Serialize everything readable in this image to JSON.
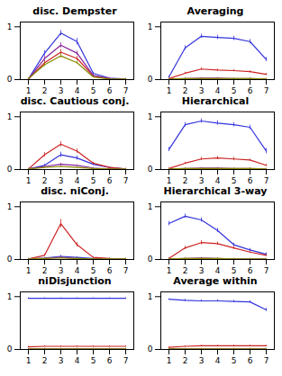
{
  "chart_data": [
    {
      "type": "line",
      "title": "disc. Dempster",
      "x": [
        1,
        2,
        3,
        4,
        5,
        6,
        7
      ],
      "series": [
        {
          "color": "#3333dd",
          "values": [
            0.01,
            0.5,
            0.88,
            0.72,
            0.12,
            0.03,
            0.01
          ],
          "errors": [
            0.01,
            0.05,
            0.05,
            0.06,
            0.02,
            0.01,
            0.01
          ]
        },
        {
          "color": "#cc2222",
          "values": [
            0.01,
            0.32,
            0.52,
            0.4,
            0.07,
            0.02,
            0.01
          ],
          "errors": [
            0.01,
            0.04,
            0.05,
            0.04,
            0.02,
            0.01,
            0.01
          ]
        },
        {
          "color": "#882299",
          "values": [
            0.01,
            0.4,
            0.65,
            0.5,
            0.08,
            0.02,
            0.01
          ],
          "errors": [
            0.01,
            0.04,
            0.05,
            0.04,
            0.02,
            0.01,
            0.01
          ]
        },
        {
          "color": "#888800",
          "values": [
            0.02,
            0.28,
            0.45,
            0.32,
            0.05,
            0.01,
            0.01
          ],
          "errors": [
            0.01,
            0.03,
            0.04,
            0.03,
            0.01,
            0.01,
            0.01
          ]
        }
      ],
      "xlim": [
        0.5,
        7.5
      ],
      "ylim": [
        0,
        1.09
      ],
      "xticks": [
        1,
        2,
        3,
        4,
        5,
        6,
        7
      ],
      "yticks": [
        0,
        1
      ]
    },
    {
      "type": "line",
      "title": "Averaging",
      "x": [
        1,
        2,
        3,
        4,
        5,
        6,
        7
      ],
      "series": [
        {
          "color": "#3333dd",
          "values": [
            0.05,
            0.6,
            0.82,
            0.8,
            0.78,
            0.72,
            0.38
          ],
          "errors": [
            0.02,
            0.04,
            0.04,
            0.04,
            0.04,
            0.04,
            0.04
          ]
        },
        {
          "color": "#cc2222",
          "values": [
            0.02,
            0.12,
            0.2,
            0.18,
            0.17,
            0.15,
            0.1
          ],
          "errors": [
            0.01,
            0.02,
            0.02,
            0.02,
            0.02,
            0.02,
            0.02
          ]
        },
        {
          "color": "#882299",
          "values": [
            0.01,
            0.02,
            0.03,
            0.03,
            0.02,
            0.02,
            0.01
          ],
          "errors": [
            0.01,
            0.01,
            0.01,
            0.01,
            0.01,
            0.01,
            0.01
          ]
        },
        {
          "color": "#888800",
          "values": [
            0.01,
            0.02,
            0.02,
            0.02,
            0.02,
            0.02,
            0.01
          ],
          "errors": [
            0.01,
            0.01,
            0.01,
            0.01,
            0.01,
            0.01,
            0.01
          ]
        }
      ],
      "xlim": [
        0.5,
        7.5
      ],
      "ylim": [
        0,
        1.09
      ],
      "xticks": [
        1,
        2,
        3,
        4,
        5,
        6,
        7
      ],
      "yticks": [
        0,
        1
      ]
    },
    {
      "type": "line",
      "title": "disc. Cautious conj.",
      "x": [
        1,
        2,
        3,
        4,
        5,
        6,
        7
      ],
      "series": [
        {
          "color": "#3333dd",
          "values": [
            0.01,
            0.08,
            0.28,
            0.22,
            0.1,
            0.04,
            0.01
          ],
          "errors": [
            0.01,
            0.02,
            0.05,
            0.04,
            0.02,
            0.01,
            0.01
          ]
        },
        {
          "color": "#cc2222",
          "values": [
            0.01,
            0.28,
            0.48,
            0.35,
            0.12,
            0.04,
            0.01
          ],
          "errors": [
            0.01,
            0.04,
            0.05,
            0.04,
            0.02,
            0.01,
            0.01
          ]
        },
        {
          "color": "#882299",
          "values": [
            0.01,
            0.06,
            0.1,
            0.08,
            0.03,
            0.01,
            0.01
          ],
          "errors": [
            0.01,
            0.01,
            0.02,
            0.01,
            0.01,
            0.01,
            0.01
          ]
        },
        {
          "color": "#888800",
          "values": [
            0.01,
            0.04,
            0.06,
            0.04,
            0.02,
            0.01,
            0.01
          ],
          "errors": [
            0.01,
            0.01,
            0.01,
            0.01,
            0.01,
            0.01,
            0.01
          ]
        }
      ],
      "xlim": [
        0.5,
        7.5
      ],
      "ylim": [
        0,
        1.09
      ],
      "xticks": [
        1,
        2,
        3,
        4,
        5,
        6,
        7
      ],
      "yticks": [
        0,
        1
      ]
    },
    {
      "type": "line",
      "title": "Hierarchical",
      "x": [
        1,
        2,
        3,
        4,
        5,
        6,
        7
      ],
      "series": [
        {
          "color": "#3333dd",
          "values": [
            0.38,
            0.85,
            0.92,
            0.88,
            0.85,
            0.8,
            0.35
          ],
          "errors": [
            0.04,
            0.04,
            0.04,
            0.04,
            0.04,
            0.04,
            0.05
          ]
        },
        {
          "color": "#cc2222",
          "values": [
            0.02,
            0.12,
            0.2,
            0.22,
            0.2,
            0.18,
            0.08
          ],
          "errors": [
            0.01,
            0.02,
            0.03,
            0.03,
            0.03,
            0.02,
            0.02
          ]
        },
        {
          "color": "#882299",
          "values": [
            0.01,
            0.02,
            0.03,
            0.03,
            0.02,
            0.02,
            0.01
          ],
          "errors": [
            0.01,
            0.01,
            0.01,
            0.01,
            0.01,
            0.01,
            0.01
          ]
        },
        {
          "color": "#888800",
          "values": [
            0.01,
            0.02,
            0.02,
            0.02,
            0.02,
            0.02,
            0.01
          ],
          "errors": [
            0.01,
            0.01,
            0.01,
            0.01,
            0.01,
            0.01,
            0.01
          ]
        }
      ],
      "xlim": [
        0.5,
        7.5
      ],
      "ylim": [
        0,
        1.09
      ],
      "xticks": [
        1,
        2,
        3,
        4,
        5,
        6,
        7
      ],
      "yticks": [
        0,
        1
      ]
    },
    {
      "type": "line",
      "title": "disc. niConj.",
      "x": [
        1,
        2,
        3,
        4,
        5,
        6,
        7
      ],
      "series": [
        {
          "color": "#3333dd",
          "values": [
            0.01,
            0.03,
            0.06,
            0.04,
            0.02,
            0.01,
            0.01
          ],
          "errors": [
            0.01,
            0.01,
            0.02,
            0.01,
            0.01,
            0.01,
            0.01
          ]
        },
        {
          "color": "#cc2222",
          "values": [
            0.01,
            0.08,
            0.68,
            0.28,
            0.04,
            0.02,
            0.01
          ],
          "errors": [
            0.01,
            0.02,
            0.08,
            0.04,
            0.01,
            0.01,
            0.01
          ]
        },
        {
          "color": "#882299",
          "values": [
            0.01,
            0.02,
            0.04,
            0.02,
            0.01,
            0.01,
            0.01
          ],
          "errors": [
            0.01,
            0.01,
            0.01,
            0.01,
            0.01,
            0.01,
            0.01
          ]
        },
        {
          "color": "#888800",
          "values": [
            0.01,
            0.02,
            0.03,
            0.02,
            0.01,
            0.01,
            0.01
          ],
          "errors": [
            0.01,
            0.01,
            0.01,
            0.01,
            0.01,
            0.01,
            0.01
          ]
        }
      ],
      "xlim": [
        0.5,
        7.5
      ],
      "ylim": [
        0,
        1.09
      ],
      "xticks": [
        1,
        2,
        3,
        4,
        5,
        6,
        7
      ],
      "yticks": [
        0,
        1
      ]
    },
    {
      "type": "line",
      "title": "Hierarchical 3-way",
      "x": [
        1,
        2,
        3,
        4,
        5,
        6,
        7
      ],
      "series": [
        {
          "color": "#3333dd",
          "values": [
            0.68,
            0.82,
            0.75,
            0.55,
            0.28,
            0.18,
            0.1
          ],
          "errors": [
            0.04,
            0.04,
            0.04,
            0.04,
            0.03,
            0.03,
            0.03
          ]
        },
        {
          "color": "#cc2222",
          "values": [
            0.02,
            0.22,
            0.32,
            0.3,
            0.22,
            0.14,
            0.08
          ],
          "errors": [
            0.01,
            0.03,
            0.04,
            0.03,
            0.03,
            0.02,
            0.02
          ]
        },
        {
          "color": "#882299",
          "values": [
            0.01,
            0.02,
            0.03,
            0.02,
            0.01,
            0.01,
            0.01
          ],
          "errors": [
            0.01,
            0.01,
            0.01,
            0.01,
            0.01,
            0.01,
            0.01
          ]
        },
        {
          "color": "#888800",
          "values": [
            0.01,
            0.02,
            0.02,
            0.02,
            0.01,
            0.01,
            0.01
          ],
          "errors": [
            0.01,
            0.01,
            0.01,
            0.01,
            0.01,
            0.01,
            0.01
          ]
        }
      ],
      "xlim": [
        0.5,
        7.5
      ],
      "ylim": [
        0,
        1.09
      ],
      "xticks": [
        1,
        2,
        3,
        4,
        5,
        6,
        7
      ],
      "yticks": [
        0,
        1
      ]
    },
    {
      "type": "line",
      "title": "niDisjunction",
      "x": [
        1,
        2,
        3,
        4,
        5,
        6,
        7
      ],
      "series": [
        {
          "color": "#3333dd",
          "values": [
            0.97,
            0.97,
            0.97,
            0.97,
            0.97,
            0.97,
            0.97
          ],
          "errors": [
            0.01,
            0.01,
            0.01,
            0.01,
            0.01,
            0.01,
            0.01
          ]
        },
        {
          "color": "#cc2222",
          "values": [
            0.05,
            0.06,
            0.06,
            0.06,
            0.06,
            0.06,
            0.06
          ],
          "errors": [
            0.01,
            0.01,
            0.01,
            0.01,
            0.01,
            0.01,
            0.01
          ]
        },
        {
          "color": "#882299",
          "values": [
            0.01,
            0.01,
            0.01,
            0.01,
            0.01,
            0.01,
            0.01
          ],
          "errors": [
            0.01,
            0.01,
            0.01,
            0.01,
            0.01,
            0.01,
            0.01
          ]
        },
        {
          "color": "#888800",
          "values": [
            0.01,
            0.01,
            0.01,
            0.01,
            0.01,
            0.01,
            0.01
          ],
          "errors": [
            0.01,
            0.01,
            0.01,
            0.01,
            0.01,
            0.01,
            0.01
          ]
        }
      ],
      "xlim": [
        0.5,
        7.5
      ],
      "ylim": [
        0,
        1.09
      ],
      "xticks": [
        1,
        2,
        3,
        4,
        5,
        6,
        7
      ],
      "yticks": [
        0,
        1
      ]
    },
    {
      "type": "line",
      "title": "Average within",
      "x": [
        1,
        2,
        3,
        4,
        5,
        6,
        7
      ],
      "series": [
        {
          "color": "#3333dd",
          "values": [
            0.95,
            0.93,
            0.92,
            0.92,
            0.91,
            0.9,
            0.75
          ],
          "errors": [
            0.01,
            0.02,
            0.02,
            0.02,
            0.02,
            0.02,
            0.03
          ]
        },
        {
          "color": "#cc2222",
          "values": [
            0.04,
            0.06,
            0.07,
            0.07,
            0.07,
            0.07,
            0.07
          ],
          "errors": [
            0.01,
            0.01,
            0.01,
            0.01,
            0.01,
            0.01,
            0.01
          ]
        },
        {
          "color": "#882299",
          "values": [
            0.01,
            0.01,
            0.01,
            0.01,
            0.01,
            0.01,
            0.01
          ],
          "errors": [
            0.01,
            0.01,
            0.01,
            0.01,
            0.01,
            0.01,
            0.01
          ]
        },
        {
          "color": "#888800",
          "values": [
            0.01,
            0.01,
            0.01,
            0.01,
            0.01,
            0.01,
            0.01
          ],
          "errors": [
            0.01,
            0.01,
            0.01,
            0.01,
            0.01,
            0.01,
            0.01
          ]
        }
      ],
      "xlim": [
        0.5,
        7.5
      ],
      "ylim": [
        0,
        1.09
      ],
      "xticks": [
        1,
        2,
        3,
        4,
        5,
        6,
        7
      ],
      "yticks": [
        0,
        1
      ]
    }
  ]
}
